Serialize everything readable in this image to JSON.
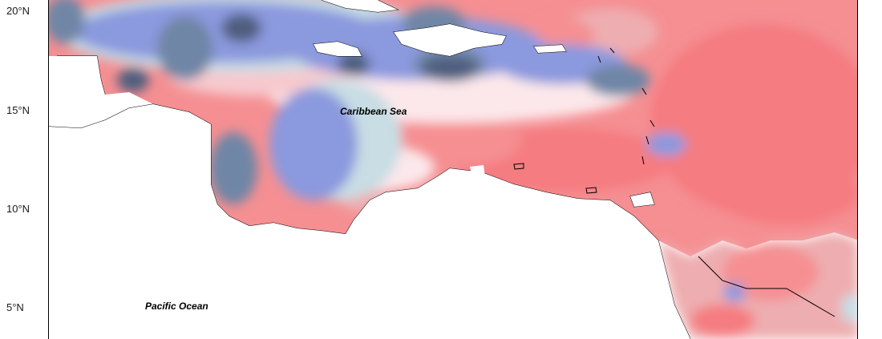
{
  "map": {
    "latitude_labels": [
      "20°N",
      "15°N",
      "10°N",
      "5°N"
    ],
    "place_labels": {
      "caribbean_sea": "Caribbean Sea",
      "pacific_ocean": "Pacific Ocean"
    },
    "colors": {
      "very_negative": "#4f5f7f",
      "negative": "#6f86a6",
      "moderate_negative": "#8b99de",
      "slight_negative": "#c8dde4",
      "near_zero": "#fce8eb",
      "slight_positive": "#f6c9ce",
      "moderate_positive": "#eeadb0",
      "positive": "#f58f92",
      "strong_positive": "#f57b80",
      "land": "#ffffff",
      "coastline": "#000000"
    }
  }
}
